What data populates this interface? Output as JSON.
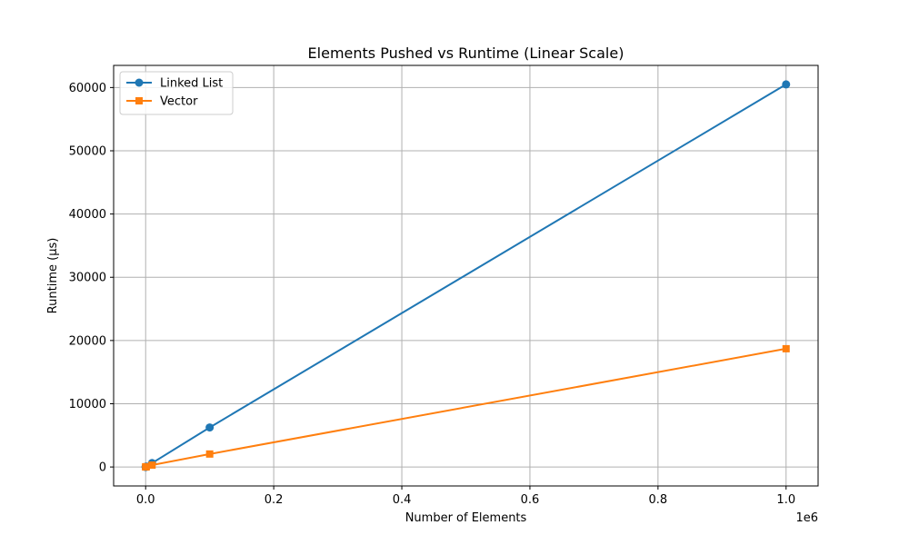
{
  "chart_data": {
    "type": "line",
    "title": "Elements Pushed vs Runtime (Linear Scale)",
    "xlabel": "Number of Elements",
    "ylabel": "Runtime (µs)",
    "x_offset_label": "1e6",
    "xlim": [
      -50000,
      1050000
    ],
    "ylim": [
      -3000,
      63500
    ],
    "xticks": [
      0,
      200000,
      400000,
      600000,
      800000,
      1000000
    ],
    "xtick_labels": [
      "0.0",
      "0.2",
      "0.4",
      "0.6",
      "0.8",
      "1.0"
    ],
    "yticks": [
      0,
      10000,
      20000,
      30000,
      40000,
      50000,
      60000
    ],
    "ytick_labels": [
      "0",
      "10000",
      "20000",
      "30000",
      "40000",
      "50000",
      "60000"
    ],
    "grid": true,
    "legend_position": "top-left",
    "series": [
      {
        "name": "Linked List",
        "color": "#1f77b4",
        "marker": "circle",
        "x": [
          10,
          100,
          1000,
          10000,
          100000,
          1000000
        ],
        "y": [
          1,
          6,
          62,
          620,
          6250,
          60500
        ]
      },
      {
        "name": "Vector",
        "color": "#ff7f0e",
        "marker": "square",
        "x": [
          10,
          100,
          1000,
          10000,
          100000,
          1000000
        ],
        "y": [
          2,
          15,
          40,
          300,
          2050,
          18700
        ]
      }
    ]
  }
}
